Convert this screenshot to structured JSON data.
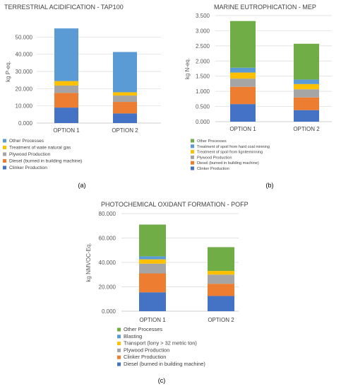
{
  "chart_data": [
    {
      "type": "bar",
      "stacked": true,
      "title": "TERRESTRIAL ACIDIFICATION - TAP100",
      "ylabel": "kg P-eq.",
      "panel_label": "(a)",
      "categories": [
        "OPTION 1",
        "OPTION 2"
      ],
      "ylim": [
        0,
        60000
      ],
      "yticks": [
        0,
        10000,
        20000,
        30000,
        40000,
        50000
      ],
      "yticklabels": [
        "0.000",
        "10.000",
        "20.000",
        "30.000",
        "40.000",
        "50.000"
      ],
      "legend_position": "bottom",
      "series": [
        {
          "name": "Clinker Production",
          "color": "#4472c4",
          "values": [
            9000,
            5600
          ]
        },
        {
          "name": "Diesel (burned in building machine)",
          "color": "#ed7d31",
          "values": [
            8500,
            6700
          ]
        },
        {
          "name": "Plywood Production",
          "color": "#a5a5a5",
          "values": [
            4300,
            3700
          ]
        },
        {
          "name": "Treatment of wate natural gas",
          "color": "#ffc000",
          "values": [
            2600,
            1900
          ]
        },
        {
          "name": "Other Processes",
          "color": "#5b9bd5",
          "values": [
            30600,
            23400
          ]
        }
      ]
    },
    {
      "type": "bar",
      "stacked": true,
      "title": "MARINE EUTROPHICATION - MEP",
      "ylabel": "kg N-eq.",
      "panel_label": "(b)",
      "categories": [
        "OPTION 1",
        "OPTION 2"
      ],
      "ylim": [
        0,
        3.5
      ],
      "yticks": [
        0,
        0.5,
        1,
        1.5,
        2,
        2.5,
        3,
        3.5
      ],
      "yticklabels": [
        "0.000",
        "0.500",
        "1.000",
        "1.500",
        "2.000",
        "2.500",
        "3.000",
        "3.500"
      ],
      "legend_position": "bottom",
      "series": [
        {
          "name": "Clinker Production",
          "color": "#4472c4",
          "values": [
            0.58,
            0.38
          ]
        },
        {
          "name": "Diesel (burned in building machine)",
          "color": "#ed7d31",
          "values": [
            0.57,
            0.42
          ]
        },
        {
          "name": "Plywood Production",
          "color": "#a5a5a5",
          "values": [
            0.27,
            0.27
          ]
        },
        {
          "name": "Treatment of spoil from ligniteminning",
          "color": "#ffc000",
          "values": [
            0.2,
            0.17
          ]
        },
        {
          "name": "Treatment of spoil from hard coal minning",
          "color": "#5b9bd5",
          "values": [
            0.16,
            0.15
          ]
        },
        {
          "name": "Other Processes",
          "color": "#70ad47",
          "values": [
            1.54,
            1.18
          ]
        }
      ]
    },
    {
      "type": "bar",
      "stacked": true,
      "title": "PHOTOCHEMICAL OXIDANT FORMATION - POFP",
      "ylabel": "kg NMVOC-Eq.",
      "panel_label": "(c)",
      "categories": [
        "OPTION 1",
        "OPTION 2"
      ],
      "ylim": [
        0,
        80000
      ],
      "yticks": [
        0,
        20000,
        40000,
        60000,
        80000
      ],
      "yticklabels": [
        "0.000",
        "20.000",
        "40.000",
        "60.000",
        "80.000"
      ],
      "legend_position": "bottom",
      "series": [
        {
          "name": "Diesel (burned in building machine)",
          "color": "#4472c4",
          "values": [
            15500,
            12500
          ]
        },
        {
          "name": "Clinker Production",
          "color": "#ed7d31",
          "values": [
            15500,
            10000
          ]
        },
        {
          "name": "Plywood Production",
          "color": "#a5a5a5",
          "values": [
            8000,
            7500
          ]
        },
        {
          "name": "Transport (lorry > 32 metric ton)",
          "color": "#ffc000",
          "values": [
            3500,
            3000
          ]
        },
        {
          "name": "Blasting",
          "color": "#5b9bd5",
          "values": [
            2500,
            0
          ]
        },
        {
          "name": "Other Processes",
          "color": "#70ad47",
          "values": [
            26000,
            19500
          ]
        }
      ]
    }
  ]
}
